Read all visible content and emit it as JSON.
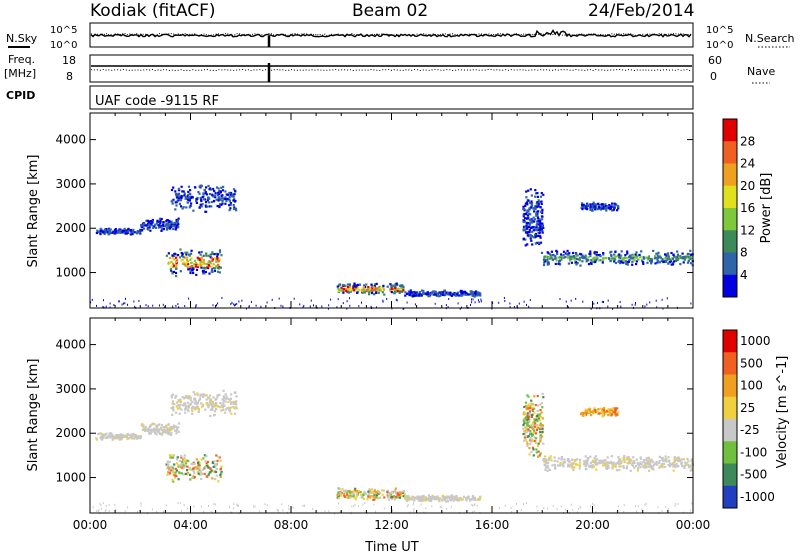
{
  "header": {
    "title": "Kodiak (fitACF)",
    "beam": "Beam 02",
    "date": "24/Feb/2014"
  },
  "summary": {
    "nsky_label": "N.Sky",
    "nsearch_label": "N.Search",
    "freq_label_1": "Freq.",
    "freq_label_2": "[MHz]",
    "nave_label": "Nave",
    "cpid_label": "CPID",
    "noise_ticks_left": [
      "10^5",
      "10^0"
    ],
    "noise_ticks_right": [
      "10^5",
      "10^0"
    ],
    "freq_ticks": [
      "18",
      "8"
    ],
    "nave_ticks": [
      "60",
      "0"
    ],
    "cpid_text": "UAF code -9115 RF"
  },
  "chart_data": [
    {
      "type": "heatmap",
      "title": "Power",
      "xlabel": "",
      "ylabel": "Slant Range [km]",
      "xlim": [
        0,
        24
      ],
      "ylim": [
        200,
        4600
      ],
      "yticks": [
        1000,
        2000,
        3000,
        4000
      ],
      "x_tick_labels": [
        "00:00",
        "04:00",
        "08:00",
        "12:00",
        "16:00",
        "20:00",
        "00:00"
      ],
      "colorbar": {
        "label": "Power [dB]",
        "tick_labels": [
          "4",
          "8",
          "12",
          "16",
          "20",
          "24",
          "28"
        ],
        "colors": [
          "#0000e0",
          "#2e64a8",
          "#3c8a5a",
          "#7ec83c",
          "#e0e020",
          "#f0a020",
          "#f06020",
          "#e00000"
        ]
      },
      "echo_regions": [
        {
          "t_start": 0.2,
          "t_end": 2.0,
          "range_center": 1950,
          "range_halfwidth": 60,
          "level": "low"
        },
        {
          "t_start": 2.0,
          "t_end": 3.5,
          "range_center": 2100,
          "range_halfwidth": 120,
          "level": "low"
        },
        {
          "t_start": 3.0,
          "t_end": 5.2,
          "range_center": 1250,
          "range_halfwidth": 250,
          "level": "high"
        },
        {
          "t_start": 3.2,
          "t_end": 5.8,
          "range_center": 2700,
          "range_halfwidth": 250,
          "level": "low"
        },
        {
          "t_start": 9.8,
          "t_end": 12.5,
          "range_center": 650,
          "range_halfwidth": 110,
          "level": "high"
        },
        {
          "t_start": 12.5,
          "t_end": 15.5,
          "range_center": 550,
          "range_halfwidth": 60,
          "level": "low"
        },
        {
          "t_start": 17.2,
          "t_end": 18.0,
          "range_center": 2200,
          "range_halfwidth": 600,
          "level": "low"
        },
        {
          "t_start": 18.0,
          "t_end": 24.0,
          "range_center": 1350,
          "range_halfwidth": 140,
          "level": "mid"
        },
        {
          "t_start": 19.5,
          "t_end": 21.0,
          "range_center": 2500,
          "range_halfwidth": 80,
          "level": "low"
        }
      ]
    },
    {
      "type": "heatmap",
      "title": "Velocity",
      "xlabel": "Time UT",
      "ylabel": "Slant Range [km]",
      "xlim": [
        0,
        24
      ],
      "ylim": [
        200,
        4600
      ],
      "yticks": [
        1000,
        2000,
        3000,
        4000
      ],
      "x_tick_labels": [
        "00:00",
        "04:00",
        "08:00",
        "12:00",
        "16:00",
        "20:00",
        "00:00"
      ],
      "colorbar": {
        "label": "Velocity [m s^-1]",
        "tick_labels": [
          "1000",
          "500",
          "100",
          "25",
          "-25",
          "-100",
          "-500",
          "-1000"
        ],
        "colors": [
          "#2040c0",
          "#3c8a5a",
          "#70c040",
          "#c8c8c8",
          "#f0d040",
          "#f0a020",
          "#f06020",
          "#e00000"
        ]
      },
      "echo_regions": [
        {
          "t_start": 0.2,
          "t_end": 2.0,
          "range_center": 1950,
          "range_halfwidth": 60,
          "level": "neutral"
        },
        {
          "t_start": 2.0,
          "t_end": 3.5,
          "range_center": 2100,
          "range_halfwidth": 120,
          "level": "neutral"
        },
        {
          "t_start": 3.0,
          "t_end": 5.2,
          "range_center": 1250,
          "range_halfwidth": 250,
          "level": "mixed"
        },
        {
          "t_start": 3.2,
          "t_end": 5.8,
          "range_center": 2700,
          "range_halfwidth": 250,
          "level": "neutral"
        },
        {
          "t_start": 9.8,
          "t_end": 12.5,
          "range_center": 650,
          "range_halfwidth": 110,
          "level": "mixed"
        },
        {
          "t_start": 12.5,
          "t_end": 15.5,
          "range_center": 550,
          "range_halfwidth": 60,
          "level": "neutral"
        },
        {
          "t_start": 17.2,
          "t_end": 18.0,
          "range_center": 2200,
          "range_halfwidth": 600,
          "level": "mixed"
        },
        {
          "t_start": 18.0,
          "t_end": 24.0,
          "range_center": 1350,
          "range_halfwidth": 140,
          "level": "neutral"
        },
        {
          "t_start": 19.5,
          "t_end": 21.0,
          "range_center": 2500,
          "range_halfwidth": 80,
          "level": "away"
        }
      ]
    }
  ]
}
